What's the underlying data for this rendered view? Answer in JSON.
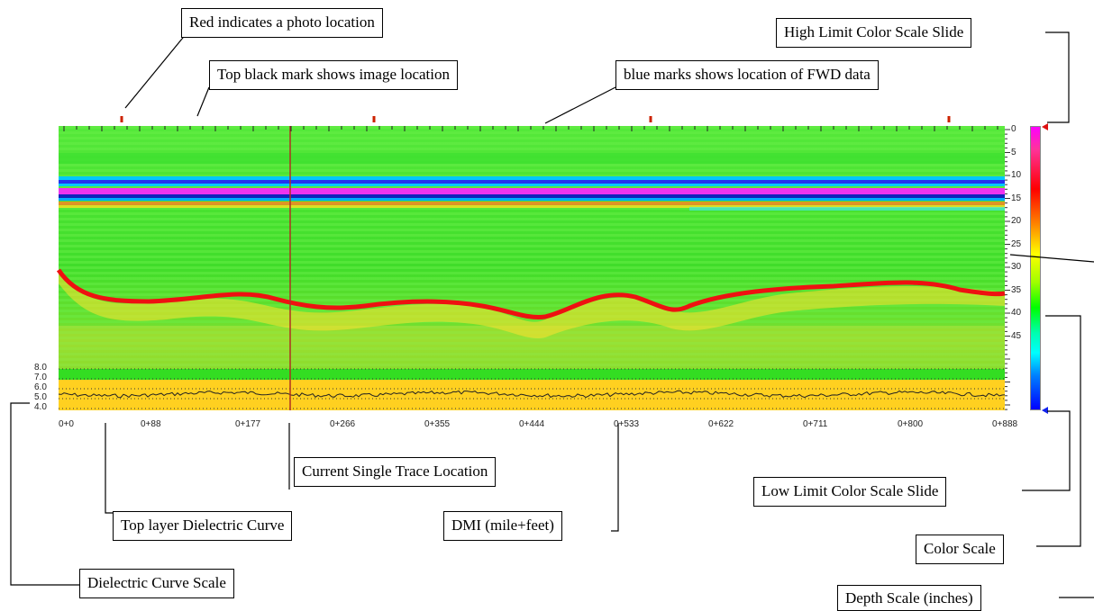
{
  "callouts": {
    "photo": "Red indicates a photo location",
    "image_mark": "Top black mark shows image location",
    "fwd": "blue marks shows location of FWD data",
    "high_limit": "High Limit Color Scale Slide",
    "trace": "Current Single Trace Location",
    "dielectric_curve": "Top layer Dielectric Curve",
    "dmi": "DMI (mile+feet)",
    "low_limit": "Low Limit Color Scale Slide",
    "color_scale": "Color Scale",
    "dielectric_scale": "Dielectric Curve Scale",
    "depth_scale": "Depth Scale (inches)"
  },
  "dmi_ticks": [
    "0+0",
    "0+88",
    "0+177",
    "0+266",
    "0+355",
    "0+444",
    "0+533",
    "0+622",
    "0+711",
    "0+800",
    "0+888"
  ],
  "depth_ticks": [
    "0",
    "5",
    "10",
    "15",
    "20",
    "25",
    "30",
    "35",
    "40",
    "45"
  ],
  "dielectric_ticks": [
    "8.0",
    "7.0",
    "6.0",
    "5.0",
    "4.0"
  ],
  "colors": {
    "photo_mark": "#cc2200",
    "trace_line": "#b03020",
    "background_green": "#33dd22",
    "reflector_red": "#ee1111",
    "band_blue": "#2233ee",
    "band_magenta": "#ee33ee",
    "lower_yellow": "#ffd020"
  },
  "icons": {
    "high_slider": "red-triangle-icon",
    "low_slider": "blue-triangle-icon"
  }
}
